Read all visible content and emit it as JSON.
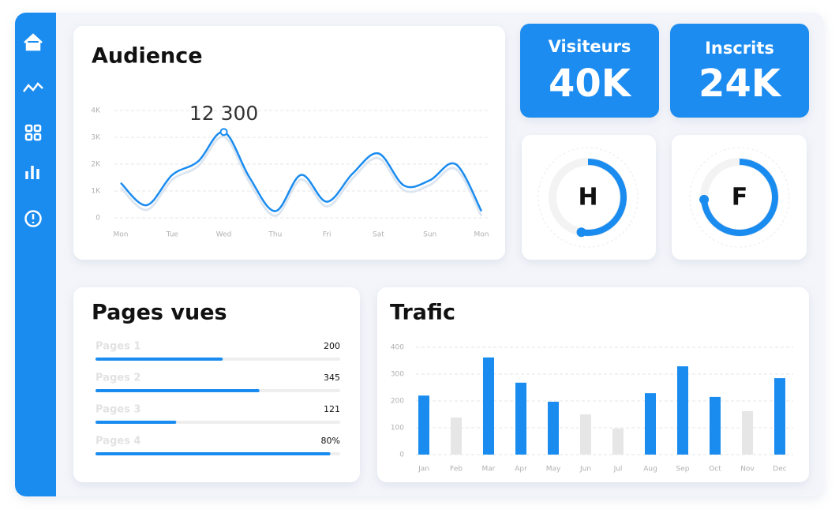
{
  "chart_data": [
    {
      "type": "line",
      "title": "Audience",
      "annotation": "12 300",
      "categories": [
        "Mon",
        null,
        "Tue",
        null,
        "Wed",
        null,
        "Thu",
        null,
        "Fri",
        null,
        "Sat",
        null,
        "Sun",
        null,
        "Mon"
      ],
      "series": [
        {
          "color": "#1a8cf0",
          "values": [
            1300,
            470,
            1600,
            2100,
            3200,
            1500,
            250,
            1600,
            600,
            1650,
            2400,
            1200,
            1400,
            2000,
            250
          ]
        }
      ],
      "ylim": [
        0,
        4000
      ],
      "yticks": [
        0,
        {
          "value": 1000,
          "label": "1K"
        },
        {
          "value": 2000,
          "label": "2K"
        },
        {
          "value": 3000,
          "label": "3K"
        },
        {
          "value": 4000,
          "label": "4K"
        }
      ],
      "grid": true
    },
    {
      "type": "bar",
      "title": "Trafic",
      "categories": [
        "Jan",
        "Feb",
        "Mar",
        "Apr",
        "May",
        "Jun",
        "Jul",
        "Aug",
        "Sep",
        "Oct",
        "Nov",
        "Dec"
      ],
      "values": [
        220,
        138,
        362,
        268,
        197,
        150,
        97,
        229,
        329,
        215,
        162,
        285
      ],
      "colors": [
        "#1a8cf0",
        "#e6e6e6",
        "#1a8cf0",
        "#1a8cf0",
        "#1a8cf0",
        "#e6e6e6",
        "#e6e6e6",
        "#1a8cf0",
        "#1a8cf0",
        "#1a8cf0",
        "#e6e6e6",
        "#1a8cf0"
      ],
      "ylim": [
        0,
        400
      ],
      "yticks": [
        0,
        100,
        200,
        300,
        400
      ],
      "grid": true
    }
  ],
  "kpis": [
    {
      "label": "Visiteurs",
      "value": "40K"
    },
    {
      "label": "Inscrits",
      "value": "24K"
    }
  ],
  "gauges": [
    {
      "letter": "H",
      "percent": 53
    },
    {
      "letter": "F",
      "percent": 74
    }
  ],
  "pages": {
    "title": "Pages vues",
    "rows": [
      {
        "label": "Pages 1",
        "value": "200",
        "progress": 52
      },
      {
        "label": "Pages 2",
        "value": "345",
        "progress": 67
      },
      {
        "label": "Pages 3",
        "value": "121",
        "progress": 33
      },
      {
        "label": "Pages 4",
        "value": "80%",
        "progress": 96
      }
    ]
  }
}
